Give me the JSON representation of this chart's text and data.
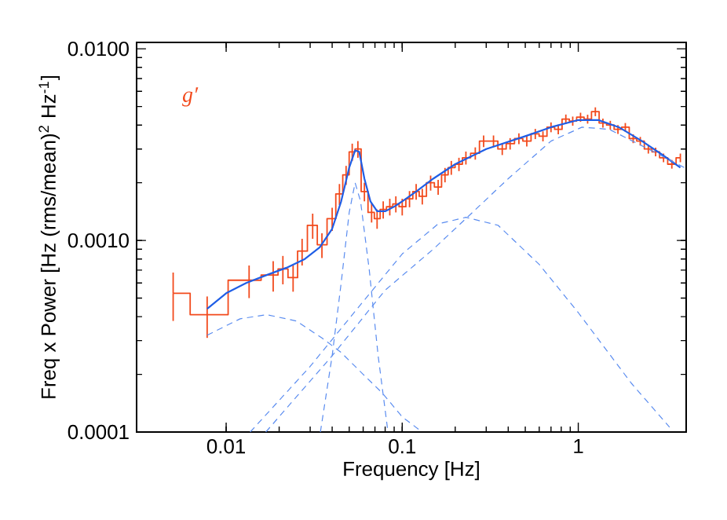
{
  "chart_data": {
    "type": "line",
    "xlabel": "Frequency [Hz]",
    "ylabel": "Freq x Power [Hz (rms/mean)$^{2}$ Hz$^{-1}$]",
    "annotations": [
      "g′"
    ],
    "log": "xy",
    "xlim": [
      0.0031,
      4.1
    ],
    "ylim": [
      0.0001,
      0.0108
    ],
    "xticks": [
      0.01,
      0.1,
      1
    ],
    "yticks": [
      {
        "value": 0.0001,
        "label": "0.0001"
      },
      {
        "value": 0.001,
        "label": "0.0010"
      },
      {
        "value": 0.01,
        "label": "0.0100"
      }
    ],
    "marker": "none",
    "series": [
      {
        "type": "step",
        "color": "#f24a1c",
        "x": [
          0.005,
          0.0078,
          0.0135,
          0.0185,
          0.021,
          0.024,
          0.027,
          0.031,
          0.035,
          0.04,
          0.044,
          0.048,
          0.052,
          0.056,
          0.061,
          0.067,
          0.072,
          0.078,
          0.085,
          0.092,
          0.1,
          0.11,
          0.12,
          0.13,
          0.145,
          0.16,
          0.175,
          0.19,
          0.21,
          0.23,
          0.26,
          0.29,
          0.33,
          0.37,
          0.41,
          0.46,
          0.51,
          0.57,
          0.63,
          0.7,
          0.77,
          0.85,
          0.93,
          1.03,
          1.13,
          1.25,
          1.38,
          1.52,
          1.68,
          1.85,
          2.05,
          2.25,
          2.5,
          2.75,
          3.05,
          3.4,
          3.8
        ],
        "values": [
          0.00053,
          0.00041,
          0.00062,
          0.00066,
          0.00071,
          0.00064,
          0.00088,
          0.0012,
          0.00095,
          0.0013,
          0.00175,
          0.0022,
          0.0029,
          0.003,
          0.0018,
          0.0014,
          0.0013,
          0.00145,
          0.0015,
          0.00155,
          0.0015,
          0.00165,
          0.0018,
          0.0017,
          0.002,
          0.0019,
          0.0022,
          0.0024,
          0.0025,
          0.0027,
          0.00285,
          0.0033,
          0.0033,
          0.003,
          0.0032,
          0.0034,
          0.0033,
          0.0036,
          0.0035,
          0.0039,
          0.0038,
          0.0043,
          0.0042,
          0.0044,
          0.0043,
          0.0047,
          0.0041,
          0.004,
          0.0038,
          0.0039,
          0.0034,
          0.0033,
          0.003,
          0.0029,
          0.0027,
          0.0025,
          0.0027
        ],
        "errors": [
          0.00015,
          0.0001,
          0.00012,
          0.00012,
          0.00012,
          0.0001,
          0.00014,
          0.00018,
          0.00014,
          0.00018,
          0.00022,
          0.00025,
          0.0003,
          0.0003,
          0.0002,
          0.00016,
          0.00015,
          0.00015,
          0.00015,
          0.00015,
          0.00015,
          0.00016,
          0.00017,
          0.00016,
          0.00018,
          0.00017,
          0.00019,
          0.0002,
          0.0002,
          0.00021,
          0.00021,
          0.00023,
          0.00023,
          0.00021,
          0.00022,
          0.00022,
          0.00021,
          0.00022,
          0.00021,
          0.00023,
          0.00022,
          0.00024,
          0.00023,
          0.00024,
          0.00023,
          0.00025,
          0.00022,
          0.00021,
          0.0002,
          0.0002,
          0.00018,
          0.00017,
          0.00016,
          0.00015,
          0.00014,
          0.00013,
          0.00014
        ]
      },
      {
        "color": "#1f5ee6",
        "line_style": "solid",
        "x": [
          0.0078,
          0.01,
          0.013,
          0.017,
          0.022,
          0.028,
          0.034,
          0.04,
          0.045,
          0.05,
          0.054,
          0.057,
          0.061,
          0.066,
          0.072,
          0.08,
          0.09,
          0.1,
          0.12,
          0.15,
          0.2,
          0.3,
          0.5,
          0.7,
          1.0,
          1.3,
          1.7,
          2.3,
          3.0,
          3.8
        ],
        "values": [
          0.00044,
          0.00053,
          0.0006,
          0.00066,
          0.00072,
          0.0008,
          0.00092,
          0.00115,
          0.0016,
          0.0024,
          0.00295,
          0.0029,
          0.0021,
          0.0016,
          0.00142,
          0.00142,
          0.0015,
          0.0016,
          0.0018,
          0.0021,
          0.0025,
          0.003,
          0.0035,
          0.0039,
          0.00425,
          0.00425,
          0.0039,
          0.0033,
          0.0028,
          0.0024
        ]
      },
      {
        "color": "#5a8cf0",
        "line_style": "dashed",
        "x": [
          0.0078,
          0.012,
          0.017,
          0.025,
          0.035,
          0.045,
          0.06,
          0.077,
          0.1,
          0.13
        ],
        "values": [
          0.00032,
          0.00039,
          0.00041,
          0.00038,
          0.00031,
          0.00026,
          0.0002,
          0.00016,
          0.00012,
          0.0001
        ]
      },
      {
        "color": "#5a8cf0",
        "line_style": "dashed",
        "x": [
          0.0343,
          0.04,
          0.045,
          0.05,
          0.054,
          0.058,
          0.065,
          0.073,
          0.083
        ],
        "values": [
          0.0001,
          0.00025,
          0.0006,
          0.0014,
          0.002,
          0.0016,
          0.0007,
          0.00025,
          0.0001
        ]
      },
      {
        "color": "#5a8cf0",
        "line_style": "dashed",
        "x": [
          0.0137,
          0.03,
          0.06,
          0.1,
          0.16,
          0.23,
          0.35,
          0.6,
          1.0,
          2.0,
          3.3
        ],
        "values": [
          0.0001,
          0.00022,
          0.00048,
          0.00085,
          0.00122,
          0.00132,
          0.0012,
          0.00075,
          0.00042,
          0.00018,
          0.000106
        ]
      },
      {
        "color": "#5a8cf0",
        "line_style": "dashed",
        "x": [
          0.0168,
          0.04,
          0.08,
          0.15,
          0.23,
          0.4,
          0.7,
          1.05,
          1.5,
          2.5,
          4.0
        ],
        "values": [
          0.0001,
          0.00025,
          0.00055,
          0.0009,
          0.0013,
          0.0021,
          0.0033,
          0.0039,
          0.0038,
          0.003,
          0.0024
        ]
      }
    ]
  }
}
